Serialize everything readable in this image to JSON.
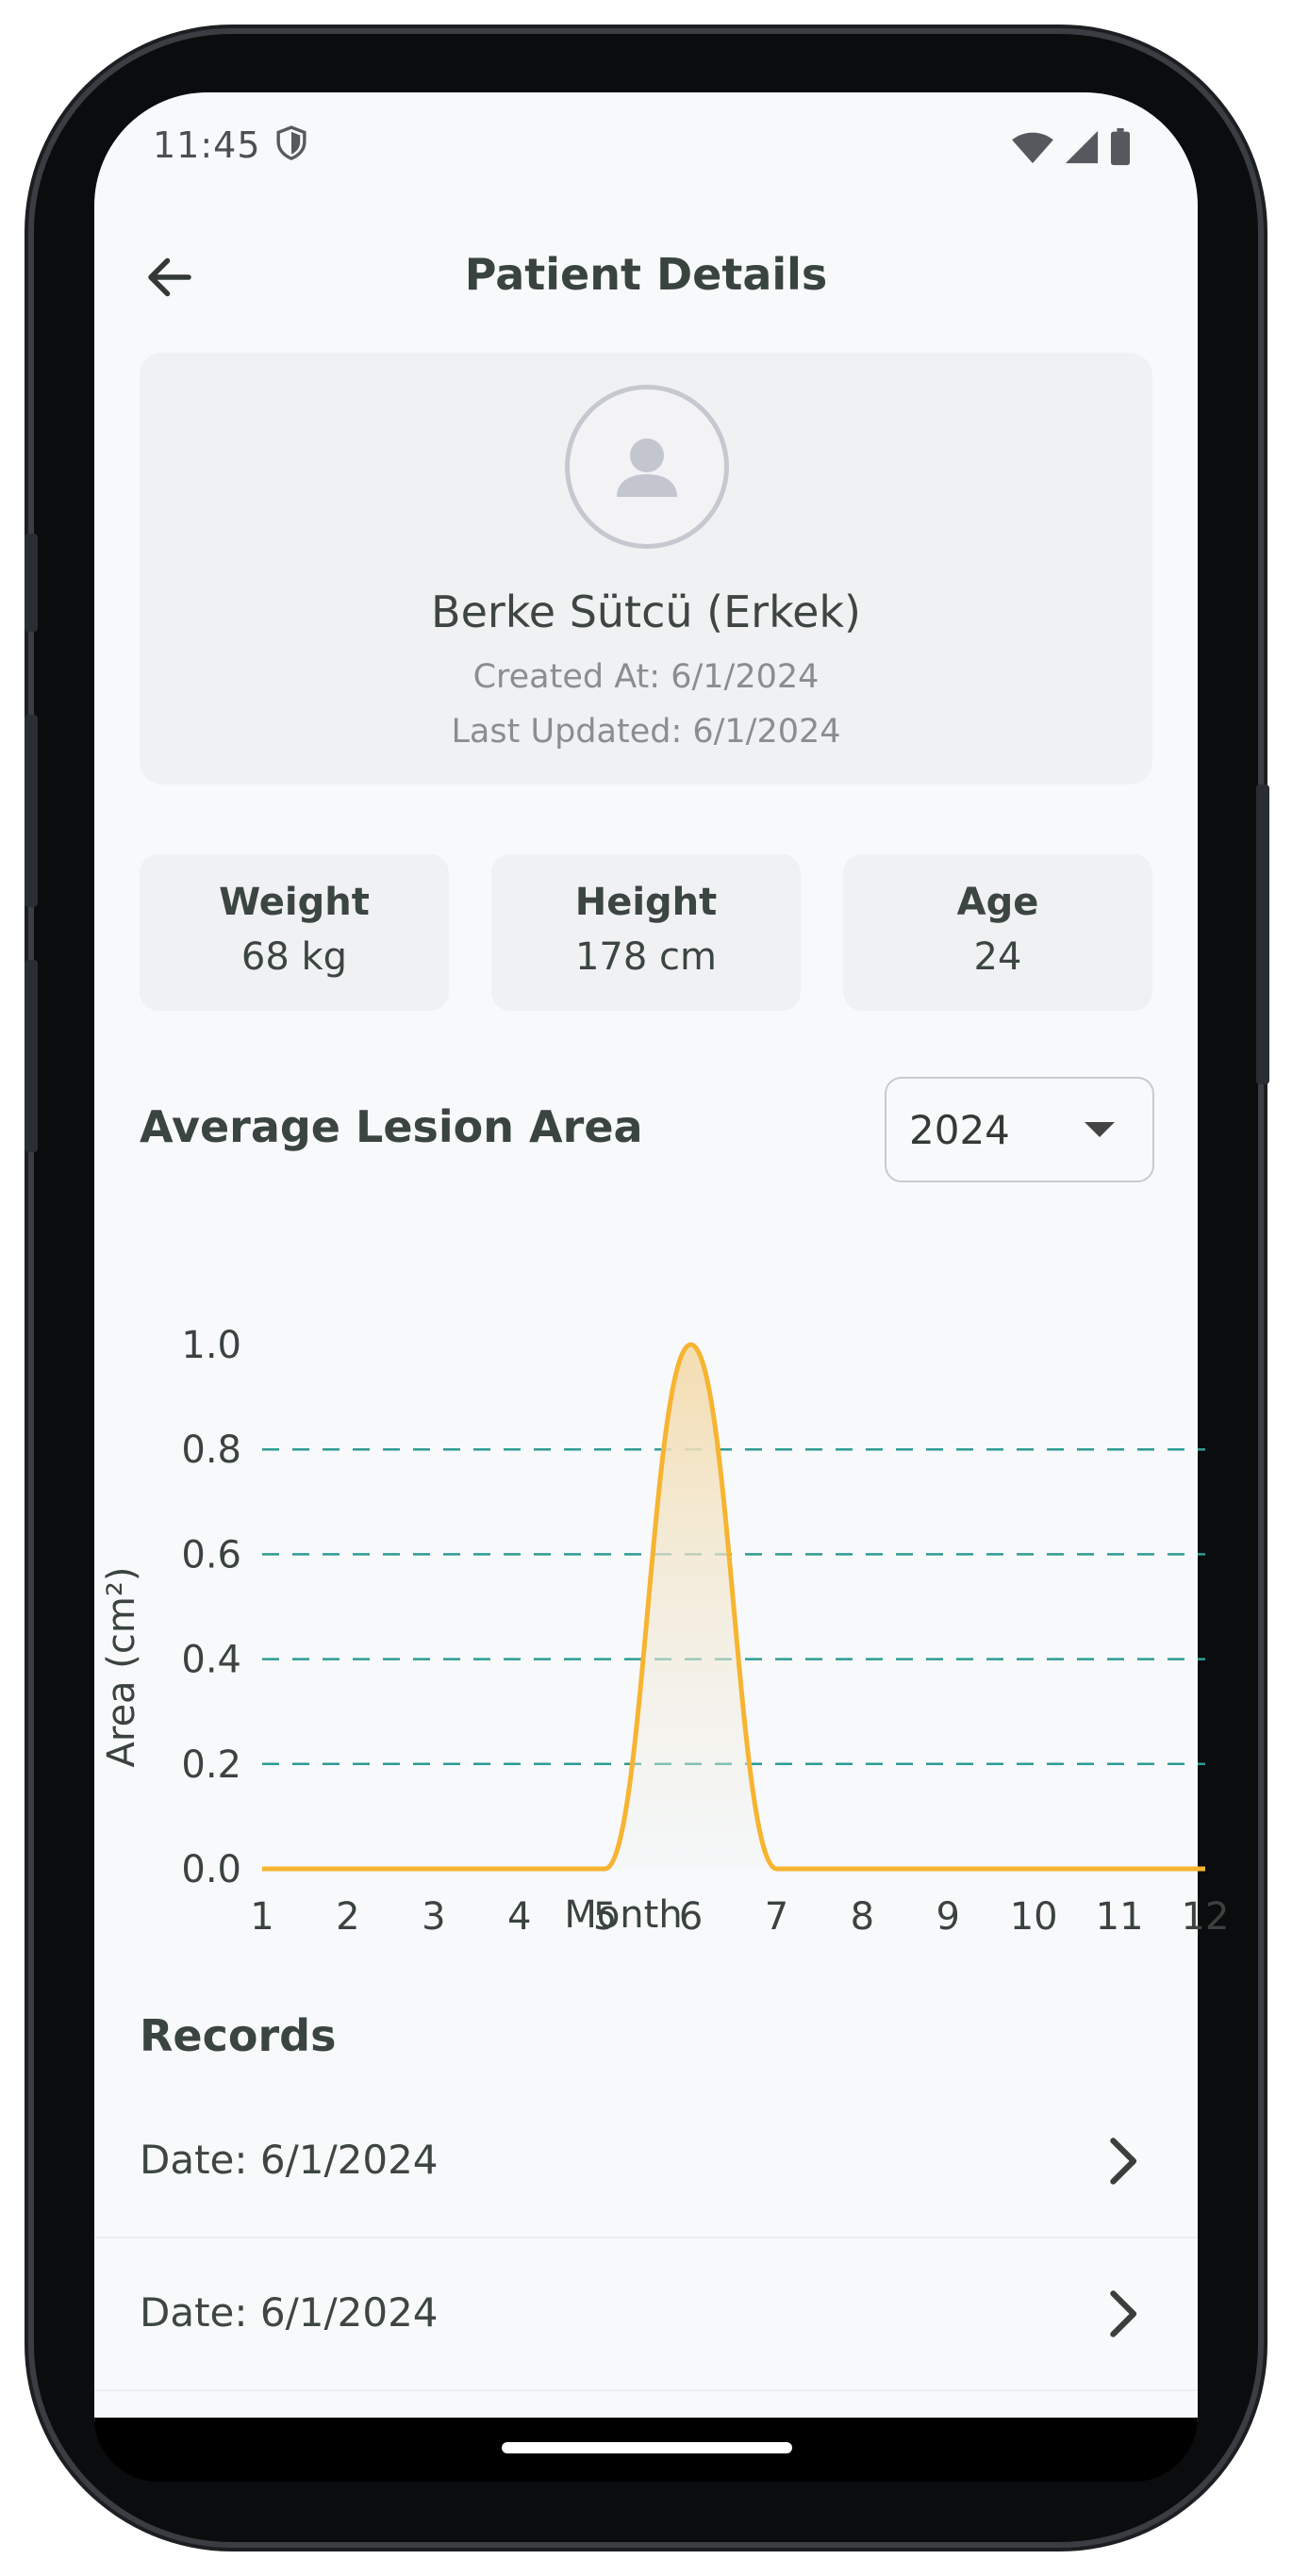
{
  "status_bar": {
    "time": "11:45"
  },
  "header": {
    "title": "Patient Details"
  },
  "profile": {
    "name": "Berke Sütcü (Erkek)",
    "created_at": "Created At: 6/1/2024",
    "last_updated": "Last Updated: 6/1/2024"
  },
  "stats": [
    {
      "label": "Weight",
      "value": "68 kg"
    },
    {
      "label": "Height",
      "value": "178 cm"
    },
    {
      "label": "Age",
      "value": "24"
    }
  ],
  "lesion_section": {
    "title": "Average Lesion Area",
    "year_selected": "2024"
  },
  "chart_data": {
    "type": "line",
    "title": "",
    "xlabel": "Month",
    "ylabel": "Area (cm²)",
    "x": [
      1,
      2,
      3,
      4,
      5,
      6,
      7,
      8,
      9,
      10,
      11,
      12
    ],
    "x_tick_labels": [
      "1",
      "2",
      "3",
      "4",
      "5",
      "6",
      "7",
      "8",
      "9",
      "10",
      "11",
      "12"
    ],
    "y_tick_labels": [
      "0.0",
      "0.2",
      "0.4",
      "0.6",
      "0.8",
      "1.0"
    ],
    "series": [
      {
        "values": [
          0,
          0,
          0,
          0,
          0,
          1.0,
          0,
          0,
          0,
          0,
          0,
          0
        ]
      }
    ],
    "xlim": [
      1,
      12
    ],
    "ylim": [
      0,
      1.0
    ],
    "grid": "horizontal dashed",
    "colors": {
      "line": "#f6b431",
      "grid": "#2d9c94",
      "fill_top": "#f4ddb0",
      "fill_bottom": "#eef2f0"
    }
  },
  "records_section": {
    "title": "Records",
    "items": [
      {
        "label": "Date: 6/1/2024"
      },
      {
        "label": "Date: 6/1/2024"
      }
    ]
  }
}
